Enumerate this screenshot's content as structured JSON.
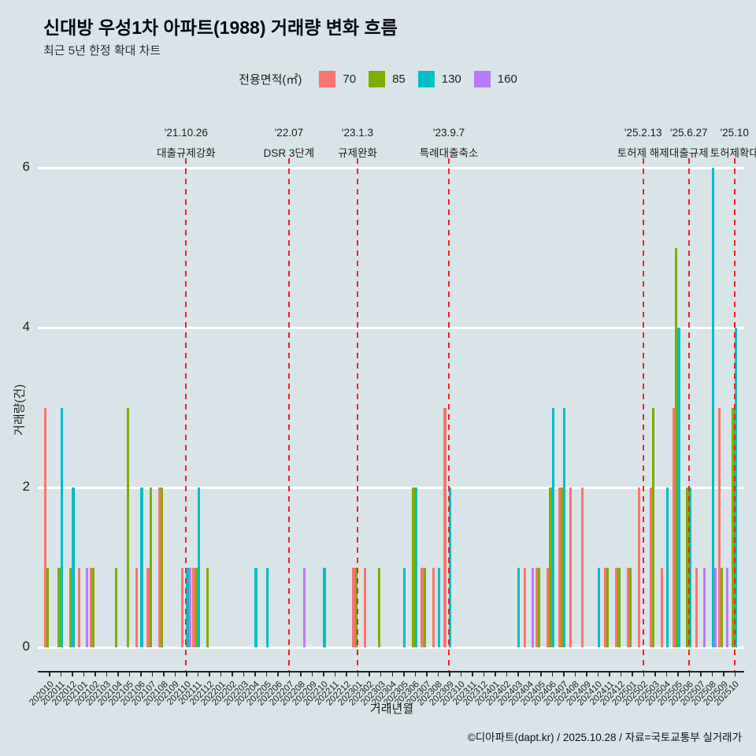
{
  "header": {
    "title": "신대방 우성1차 아파트(1988) 거래량 변화 흐름",
    "subtitle": "최근 5년 한정 확대 차트"
  },
  "legend": {
    "label": "전용면적(㎡)",
    "items": [
      {
        "label": "70",
        "color": "#f8766d"
      },
      {
        "label": "85",
        "color": "#7cae00"
      },
      {
        "label": "130",
        "color": "#00bfc4"
      },
      {
        "label": "160",
        "color": "#b87af8"
      }
    ]
  },
  "chart_data": {
    "type": "bar",
    "title": "신대방 우성1차 아파트(1988) 거래량 변화 흐름",
    "xlabel": "거래년월",
    "ylabel": "거래량(건)",
    "ylim": [
      0,
      6
    ],
    "yticks": [
      0,
      2,
      4,
      6
    ],
    "grid": "on",
    "grid_color": "#ffffff",
    "background_color": "#d9e4e9",
    "event_line_color": "#ee2222",
    "legend_position": "top",
    "categories": [
      "202010",
      "202011",
      "202012",
      "202101",
      "202102",
      "202103",
      "202104",
      "202105",
      "202106",
      "202107",
      "202108",
      "202109",
      "202110",
      "202111",
      "202112",
      "202201",
      "202202",
      "202203",
      "202204",
      "202205",
      "202206",
      "202207",
      "202208",
      "202209",
      "202210",
      "202211",
      "202212",
      "202301",
      "202302",
      "202303",
      "202304",
      "202305",
      "202306",
      "202307",
      "202308",
      "202309",
      "202310",
      "202311",
      "202312",
      "202401",
      "202402",
      "202403",
      "202404",
      "202405",
      "202406",
      "202407",
      "202408",
      "202409",
      "202410",
      "202411",
      "202412",
      "202501",
      "202502",
      "202503",
      "202504",
      "202505",
      "202506",
      "202507",
      "202508",
      "202509",
      "202510"
    ],
    "series": [
      {
        "name": "70",
        "color": "#f8766d",
        "values": [
          3,
          0,
          0,
          1,
          1,
          0,
          0,
          0,
          1,
          1,
          2,
          0,
          1,
          1,
          0,
          0,
          0,
          0,
          0,
          0,
          0,
          0,
          0,
          0,
          0,
          0,
          0,
          1,
          1,
          0,
          0,
          0,
          0,
          1,
          1,
          3,
          0,
          0,
          0,
          0,
          0,
          0,
          1,
          1,
          1,
          2,
          2,
          2,
          0,
          1,
          1,
          1,
          2,
          2,
          1,
          3,
          0,
          1,
          0,
          3,
          0
        ]
      },
      {
        "name": "85",
        "color": "#7cae00",
        "values": [
          1,
          1,
          1,
          0,
          1,
          0,
          1,
          3,
          0,
          2,
          2,
          0,
          0,
          1,
          1,
          0,
          0,
          0,
          0,
          0,
          0,
          0,
          0,
          0,
          0,
          0,
          0,
          1,
          0,
          1,
          0,
          0,
          2,
          1,
          0,
          0,
          0,
          0,
          0,
          0,
          0,
          0,
          0,
          1,
          2,
          2,
          0,
          0,
          0,
          1,
          1,
          1,
          0,
          3,
          0,
          5,
          2,
          0,
          0,
          1,
          3
        ]
      },
      {
        "name": "130",
        "color": "#00bfc4",
        "values": [
          0,
          3,
          2,
          0,
          0,
          0,
          0,
          0,
          2,
          0,
          0,
          0,
          1,
          2,
          0,
          0,
          0,
          0,
          1,
          1,
          0,
          0,
          0,
          0,
          1,
          0,
          0,
          0,
          0,
          0,
          0,
          1,
          2,
          0,
          1,
          2,
          0,
          0,
          0,
          0,
          0,
          1,
          0,
          0,
          3,
          3,
          0,
          0,
          1,
          0,
          0,
          0,
          0,
          0,
          2,
          4,
          2,
          0,
          6,
          0,
          4
        ]
      },
      {
        "name": "160",
        "color": "#b87af8",
        "values": [
          0,
          0,
          0,
          1,
          0,
          0,
          0,
          0,
          0,
          0,
          0,
          0,
          1,
          0,
          0,
          0,
          0,
          0,
          0,
          0,
          0,
          0,
          1,
          0,
          0,
          0,
          0,
          0,
          0,
          0,
          0,
          0,
          0,
          0,
          0,
          0,
          0,
          0,
          0,
          0,
          0,
          0,
          1,
          0,
          0,
          0,
          0,
          0,
          0,
          0,
          0,
          0,
          0,
          0,
          0,
          0,
          0,
          1,
          1,
          1,
          0
        ]
      }
    ],
    "events": [
      {
        "date": "'21.10.26",
        "label": "대출규제강화",
        "month": "202110"
      },
      {
        "date": "'22.07",
        "label": "DSR 3단계",
        "month": "202207"
      },
      {
        "date": "'23.1.3",
        "label": "규제완화",
        "month": "202301"
      },
      {
        "date": "'23.9.7",
        "label": "특례대출축소",
        "month": "202309"
      },
      {
        "date": "'25.2.13",
        "label": "토허제 해제",
        "month": "202502"
      },
      {
        "date": "'25.6.27",
        "label": "대출규제",
        "month": "202506"
      },
      {
        "date": "'25.10",
        "label": "토허제확대",
        "month": "202510"
      }
    ]
  },
  "footer": {
    "credit": "©디아파트(dapt.kr) / 2025.10.28 / 자료=국토교통부 실거래가"
  }
}
